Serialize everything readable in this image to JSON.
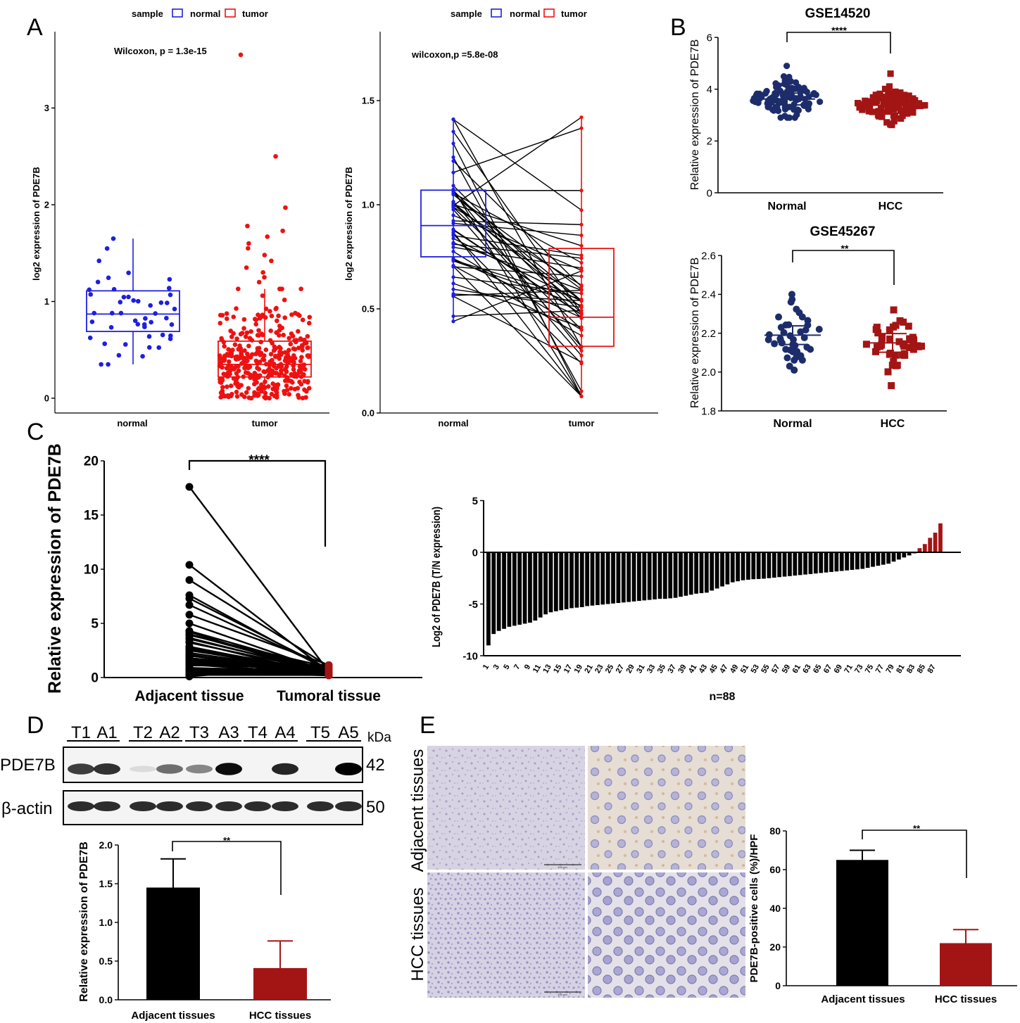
{
  "panels": {
    "A": "A",
    "B": "B",
    "C": "C",
    "D": "D",
    "E": "E"
  },
  "colors": {
    "normal": "#1f1fe0",
    "tumor": "#ee1111",
    "navy": "#1d2d6b",
    "darkred": "#a31515",
    "black": "#000000"
  },
  "chart_data": [
    {
      "id": "A1",
      "type": "box+scatter",
      "legend_title": "sample",
      "legend": [
        "normal",
        "tumor"
      ],
      "annotation": "Wilcoxon, p = 1.3e-15",
      "ylabel": "log2 expression of PDE7B",
      "categories": [
        "normal",
        "tumor"
      ],
      "yticks": [
        "0",
        "1",
        "2",
        "3"
      ],
      "ylim": [
        -0.1,
        3.7
      ],
      "boxes": [
        {
          "name": "normal",
          "min": 0.35,
          "q1": 0.69,
          "median": 0.87,
          "q3": 1.11,
          "max": 1.65
        },
        {
          "name": "tumor",
          "min": 0.0,
          "q1": 0.22,
          "median": 0.35,
          "q3": 0.59,
          "max": 1.13
        }
      ],
      "outliers": [
        3.55,
        2.5,
        1.97,
        1.78,
        1.73,
        1.67,
        1.6,
        1.55,
        1.48,
        1.42,
        1.35,
        1.3,
        1.25,
        1.2
      ]
    },
    {
      "id": "A2",
      "type": "paired box",
      "legend_title": "sample",
      "legend": [
        "normal",
        "tumor"
      ],
      "annotation": "wilcoxon,p =5.8e-08",
      "ylabel": "log2 expression of PDE7B",
      "categories": [
        "normal",
        "tumor"
      ],
      "yticks": [
        "0.0",
        "0.5",
        "1.0",
        "1.5"
      ],
      "ylim": [
        0,
        1.75
      ],
      "boxes": [
        {
          "name": "normal",
          "min": 0.44,
          "q1": 0.75,
          "median": 0.9,
          "q3": 1.07,
          "max": 1.41
        },
        {
          "name": "tumor",
          "min": 0.08,
          "q1": 0.32,
          "median": 0.46,
          "q3": 0.79,
          "max": 1.42
        }
      ]
    },
    {
      "id": "B1",
      "type": "scatter dot plot",
      "title": "GSE14520",
      "signif": "****",
      "ylabel": "Relative expression of PDE7B",
      "categories": [
        "Normal",
        "HCC"
      ],
      "yticks": [
        "0",
        "2",
        "4",
        "6"
      ],
      "ylim": [
        0,
        6
      ],
      "groups": [
        {
          "name": "Normal",
          "mean": 3.62,
          "sd": 0.38,
          "min": 2.9,
          "max": 4.9,
          "marker": "circle"
        },
        {
          "name": "HCC",
          "mean": 3.38,
          "sd": 0.3,
          "min": 2.62,
          "max": 4.6,
          "marker": "square"
        }
      ]
    },
    {
      "id": "B2",
      "type": "scatter dot plot",
      "title": "GSE45267",
      "signif": "**",
      "ylabel": "Relative expression of PDE7B",
      "categories": [
        "Normal",
        "HCC"
      ],
      "yticks": [
        "1.8",
        "2.0",
        "2.2",
        "2.4",
        "2.6"
      ],
      "ylim": [
        1.8,
        2.6
      ],
      "groups": [
        {
          "name": "Normal",
          "mean": 2.19,
          "sd": 0.08,
          "min": 2.01,
          "max": 2.4,
          "marker": "circle"
        },
        {
          "name": "HCC",
          "mean": 2.15,
          "sd": 0.08,
          "min": 1.93,
          "max": 2.32,
          "marker": "square"
        }
      ]
    },
    {
      "id": "C1",
      "type": "paired line",
      "signif": "****",
      "ylabel": "Relative expression of PDE7B",
      "categories": [
        "Adjacent tissue",
        "Tumoral tissue"
      ],
      "yticks": [
        "0",
        "5",
        "10",
        "15",
        "20"
      ],
      "ylim": [
        0,
        20
      ],
      "adjacent_top": [
        17.6,
        10.4,
        9.0,
        7.6,
        7.3,
        6.7,
        5.8,
        5.0
      ]
    },
    {
      "id": "C2",
      "type": "bar",
      "ylabel": "Log2 of PDE7B (T/N expression)",
      "xlabel": "n=88",
      "yticks": [
        "-10",
        "-5",
        "0",
        "5"
      ],
      "ylim": [
        -10,
        5
      ],
      "n": 88,
      "values": [
        -9.0,
        -7.9,
        -7.6,
        -7.4,
        -7.2,
        -7.1,
        -7.0,
        -6.9,
        -6.8,
        -6.6,
        -6.3,
        -6.0,
        -5.8,
        -5.7,
        -5.6,
        -5.5,
        -5.4,
        -5.35,
        -5.3,
        -5.2,
        -5.15,
        -5.1,
        -5.05,
        -5.0,
        -4.95,
        -4.9,
        -4.85,
        -4.8,
        -4.75,
        -4.7,
        -4.65,
        -4.6,
        -4.55,
        -4.5,
        -4.5,
        -4.45,
        -4.4,
        -4.3,
        -4.2,
        -4.1,
        -4.0,
        -3.95,
        -3.9,
        -3.7,
        -3.5,
        -3.3,
        -3.1,
        -2.9,
        -2.8,
        -2.7,
        -2.65,
        -2.6,
        -2.58,
        -2.55,
        -2.5,
        -2.45,
        -2.4,
        -2.35,
        -2.3,
        -2.25,
        -2.2,
        -2.15,
        -2.1,
        -2.05,
        -2.0,
        -1.95,
        -1.9,
        -1.85,
        -1.8,
        -1.75,
        -1.7,
        -1.65,
        -1.6,
        -1.5,
        -1.4,
        -1.3,
        -1.2,
        -1.1,
        -0.9,
        -0.7,
        -0.5,
        -0.3,
        -0.1,
        0.4,
        0.8,
        1.4,
        1.9,
        2.8
      ]
    },
    {
      "id": "D",
      "type": "bar",
      "signif": "**",
      "ylabel": "Relative expression of PDE7B",
      "categories": [
        "Adjacent tissues",
        "HCC tissues"
      ],
      "values": [
        1.45,
        0.41
      ],
      "errors": [
        0.37,
        0.35
      ],
      "yticks": [
        "0.0",
        "0.5",
        "1.0",
        "1.5",
        "2.0"
      ],
      "ylim": [
        0,
        2.0
      ]
    },
    {
      "id": "E",
      "type": "bar",
      "signif": "**",
      "ylabel": "PDE7B-positive cells (%)/HPF",
      "categories": [
        "Adjacent tissues",
        "HCC tissues"
      ],
      "values": [
        65,
        22
      ],
      "errors": [
        5,
        7
      ],
      "yticks": [
        "0",
        "20",
        "40",
        "60",
        "80"
      ],
      "ylim": [
        0,
        80
      ]
    }
  ],
  "western": {
    "lanes": [
      "T1",
      "A1",
      "T2",
      "A2",
      "T3",
      "A3",
      "T4",
      "A4",
      "T5",
      "A5"
    ],
    "unit": "kDa",
    "rows": [
      {
        "protein": "PDE7B",
        "kda": "42"
      },
      {
        "protein": "β-actin",
        "kda": "50"
      }
    ]
  },
  "ihc": {
    "rows": [
      "Adjacent tissues",
      "HCC tissues"
    ],
    "scalebar": "100 μm"
  }
}
